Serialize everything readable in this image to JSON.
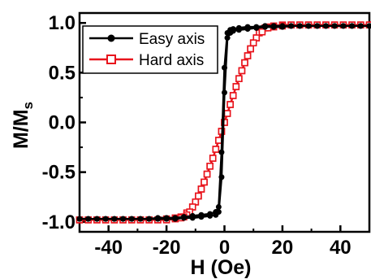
{
  "chart_data": {
    "type": "line",
    "xlabel": "H (Oe)",
    "ylabel_main": "M/M",
    "ylabel_sub": "s",
    "xlim": [
      -50,
      50
    ],
    "ylim": [
      -1.1,
      1.1
    ],
    "xticks": [
      -40,
      -20,
      0,
      20,
      40
    ],
    "xtick_labels": [
      "-40",
      "-20",
      "0",
      "20",
      "40"
    ],
    "yticks": [
      -1.0,
      -0.5,
      0.0,
      0.5,
      1.0
    ],
    "ytick_labels": [
      "-1.0",
      "-0.5",
      "0.0",
      "0.5",
      "1.0"
    ],
    "legend_position": "top-left",
    "series": [
      {
        "name": "Easy axis",
        "color": "#000000",
        "marker": "filled-circle",
        "x": [
          -50,
          -47,
          -44,
          -41,
          -38,
          -35,
          -32,
          -29,
          -26,
          -23,
          -20,
          -17,
          -14,
          -11,
          -8,
          -5,
          -3,
          -2,
          -1,
          0,
          1,
          2,
          3,
          5,
          8,
          11,
          14,
          17,
          20,
          23,
          26,
          29,
          32,
          35,
          38,
          41,
          44,
          47,
          50,
          50,
          47,
          44,
          41,
          38,
          35,
          32,
          29,
          26,
          23,
          20,
          17,
          14,
          11,
          8,
          5,
          3,
          2,
          1,
          0,
          -1,
          -2,
          -3,
          -5,
          -8,
          -11,
          -14,
          -17,
          -20,
          -23,
          -26,
          -29,
          -32,
          -35,
          -38,
          -41,
          -44,
          -47,
          -50
        ],
        "y": [
          -0.97,
          -0.97,
          -0.97,
          -0.97,
          -0.97,
          -0.97,
          -0.97,
          -0.97,
          -0.97,
          -0.96,
          -0.96,
          -0.96,
          -0.95,
          -0.94,
          -0.93,
          -0.92,
          -0.9,
          -0.85,
          -0.3,
          0.55,
          0.9,
          0.93,
          0.94,
          0.95,
          0.96,
          0.96,
          0.97,
          0.97,
          0.97,
          0.97,
          0.97,
          0.97,
          0.97,
          0.97,
          0.97,
          0.97,
          0.97,
          0.97,
          0.97,
          0.97,
          0.97,
          0.97,
          0.97,
          0.97,
          0.97,
          0.97,
          0.97,
          0.97,
          0.97,
          0.96,
          0.96,
          0.96,
          0.95,
          0.94,
          0.93,
          0.92,
          0.9,
          0.85,
          0.3,
          -0.55,
          -0.9,
          -0.93,
          -0.94,
          -0.95,
          -0.96,
          -0.96,
          -0.97,
          -0.97,
          -0.97,
          -0.97,
          -0.97,
          -0.97,
          -0.97,
          -0.97,
          -0.97,
          -0.97,
          -0.97,
          -0.97
        ]
      },
      {
        "name": "Hard axis",
        "color": "#e8141c",
        "marker": "open-square",
        "x": [
          -50,
          -47,
          -44,
          -41,
          -38,
          -35,
          -32,
          -29,
          -26,
          -23,
          -20,
          -17,
          -15,
          -13,
          -11,
          -10,
          -9,
          -8,
          -7,
          -6,
          -5,
          -4,
          -3,
          -2,
          -1,
          0,
          1,
          2,
          3,
          4,
          5,
          6,
          7,
          8,
          9,
          10,
          11,
          12,
          13,
          14,
          15,
          17,
          20,
          23,
          26,
          29,
          32,
          35,
          38,
          41,
          44,
          47,
          50,
          50,
          47,
          44,
          41,
          38,
          35,
          32,
          29,
          26,
          23,
          20,
          17,
          15,
          13,
          11,
          10,
          9,
          8,
          7,
          6,
          5,
          4,
          3,
          2,
          1,
          0,
          -1,
          -2,
          -3,
          -4,
          -5,
          -6,
          -7,
          -8,
          -9,
          -10,
          -11,
          -12,
          -13,
          -14,
          -15,
          -17,
          -20,
          -23,
          -26,
          -29,
          -32,
          -35,
          -38,
          -41,
          -44,
          -47,
          -50
        ],
        "y": [
          -0.98,
          -0.98,
          -0.98,
          -0.98,
          -0.98,
          -0.98,
          -0.98,
          -0.98,
          -0.98,
          -0.98,
          -0.97,
          -0.96,
          -0.95,
          -0.91,
          -0.85,
          -0.8,
          -0.74,
          -0.67,
          -0.6,
          -0.52,
          -0.44,
          -0.36,
          -0.27,
          -0.18,
          -0.09,
          0.0,
          0.09,
          0.18,
          0.27,
          0.36,
          0.44,
          0.52,
          0.6,
          0.67,
          0.74,
          0.8,
          0.85,
          0.9,
          0.93,
          0.95,
          0.96,
          0.97,
          0.98,
          0.98,
          0.98,
          0.98,
          0.98,
          0.98,
          0.98,
          0.98,
          0.98,
          0.98,
          0.98,
          0.98,
          0.98,
          0.98,
          0.98,
          0.98,
          0.98,
          0.98,
          0.98,
          0.98,
          0.98,
          0.97,
          0.96,
          0.95,
          0.91,
          0.85,
          0.8,
          0.74,
          0.67,
          0.6,
          0.52,
          0.44,
          0.36,
          0.27,
          0.18,
          0.09,
          0.0,
          -0.09,
          -0.18,
          -0.27,
          -0.36,
          -0.44,
          -0.52,
          -0.6,
          -0.67,
          -0.74,
          -0.8,
          -0.85,
          -0.9,
          -0.93,
          -0.95,
          -0.96,
          -0.97,
          -0.98,
          -0.98,
          -0.98,
          -0.98,
          -0.98,
          -0.98,
          -0.98,
          -0.98,
          -0.98,
          -0.98,
          -0.98
        ]
      }
    ]
  }
}
